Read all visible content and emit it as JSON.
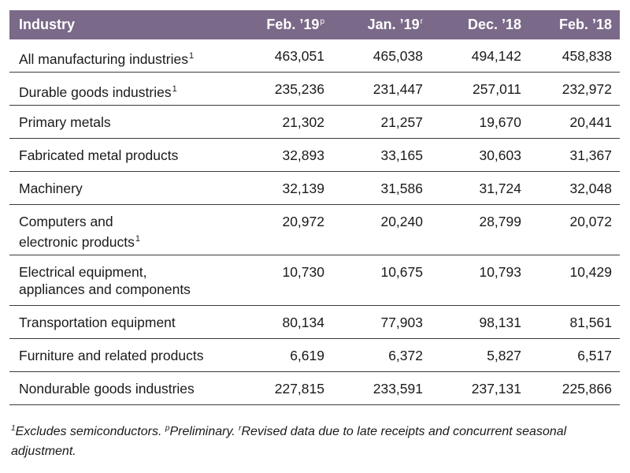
{
  "table": {
    "headers": [
      {
        "label": "Industry",
        "sup": ""
      },
      {
        "label": "Feb. ’19",
        "sup": "p"
      },
      {
        "label": "Jan. ’19",
        "sup": "r"
      },
      {
        "label": "Dec. ’18",
        "sup": ""
      },
      {
        "label": "Feb. ’18",
        "sup": ""
      }
    ],
    "rows": [
      {
        "name": "All manufacturing industries",
        "note": "1",
        "values": [
          "463,051",
          "465,038",
          "494,142",
          "458,838"
        ]
      },
      {
        "name": "Durable goods industries",
        "note": "1",
        "values": [
          "235,236",
          "231,447",
          "257,011",
          "232,972"
        ]
      },
      {
        "name": "Primary metals",
        "note": "",
        "values": [
          "21,302",
          "21,257",
          "19,670",
          "20,441"
        ]
      },
      {
        "name": "Fabricated metal products",
        "note": "",
        "values": [
          "32,893",
          "33,165",
          "30,603",
          "31,367"
        ]
      },
      {
        "name": "Machinery",
        "note": "",
        "values": [
          "32,139",
          "31,586",
          "31,724",
          "32,048"
        ]
      },
      {
        "name_lines": [
          "Computers and",
          "electronic products"
        ],
        "note": "1",
        "values": [
          "20,972",
          "20,240",
          "28,799",
          "20,072"
        ]
      },
      {
        "name_lines": [
          "Electrical equipment,",
          "appliances and components"
        ],
        "note": "",
        "values": [
          "10,730",
          "10,675",
          "10,793",
          "10,429"
        ]
      },
      {
        "name": "Transportation equipment",
        "note": "",
        "values": [
          "80,134",
          "77,903",
          "98,131",
          "81,561"
        ]
      },
      {
        "name": "Furniture and related products",
        "note": "",
        "values": [
          "6,619",
          "6,372",
          "5,827",
          "6,517"
        ]
      },
      {
        "name": "Nondurable goods industries",
        "note": "",
        "values": [
          "227,815",
          "233,591",
          "237,131",
          "225,866"
        ]
      }
    ]
  },
  "footnote": {
    "sup1": "1",
    "text1": "Excludes semiconductors. ",
    "sup2": "p",
    "text2": "Preliminary. ",
    "sup3": "r",
    "text3": "Revised data due to late receipts and concurrent seasonal adjustment."
  },
  "colors": {
    "header_bg": "#7a6988",
    "header_text": "#ffffff",
    "rule": "#3a3a3a"
  }
}
